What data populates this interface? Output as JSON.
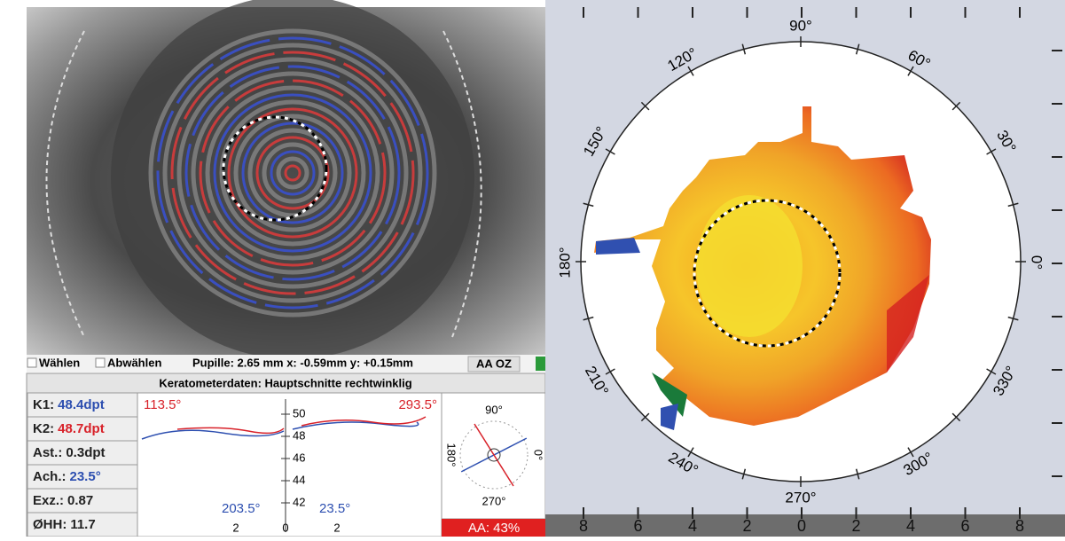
{
  "toolbar": {
    "select": "Wählen",
    "deselect": "Abwählen",
    "pupil": "Pupille: 2.65 mm x: -0.59mm y: +0.15mm",
    "button": "AA OZ"
  },
  "keratometry": {
    "title": "Keratometerdaten: Hauptschnitte rechtwinklig",
    "rows": [
      {
        "label": "K1:",
        "value": "48.4dpt"
      },
      {
        "label": "K2:",
        "value": "48.7dpt"
      },
      {
        "label": "Ast.:",
        "value": "0.3dpt"
      },
      {
        "label": "Ach.:",
        "value": "23.5°"
      },
      {
        "label": "Exz.:",
        "value": "0.87"
      },
      {
        "label": "ØHH:",
        "value": "11.7"
      }
    ],
    "profile": {
      "angles": [
        "113.5°",
        "293.5°",
        "203.5°",
        "23.5°"
      ],
      "scale": [
        "50",
        "48",
        "46",
        "44",
        "42"
      ],
      "bottom": [
        "2",
        "0",
        "2"
      ]
    },
    "compass": [
      "90°",
      "180°",
      "0°",
      "270°"
    ],
    "coverage": "AA: 43%"
  },
  "topography": {
    "angles": [
      "90°",
      "120°",
      "60°",
      "150°",
      "30°",
      "180°",
      "0°",
      "210°",
      "330°",
      "240°",
      "300°",
      "270°"
    ],
    "scale": [
      "8",
      "6",
      "4",
      "2",
      "0",
      "2",
      "4",
      "6",
      "8"
    ]
  }
}
